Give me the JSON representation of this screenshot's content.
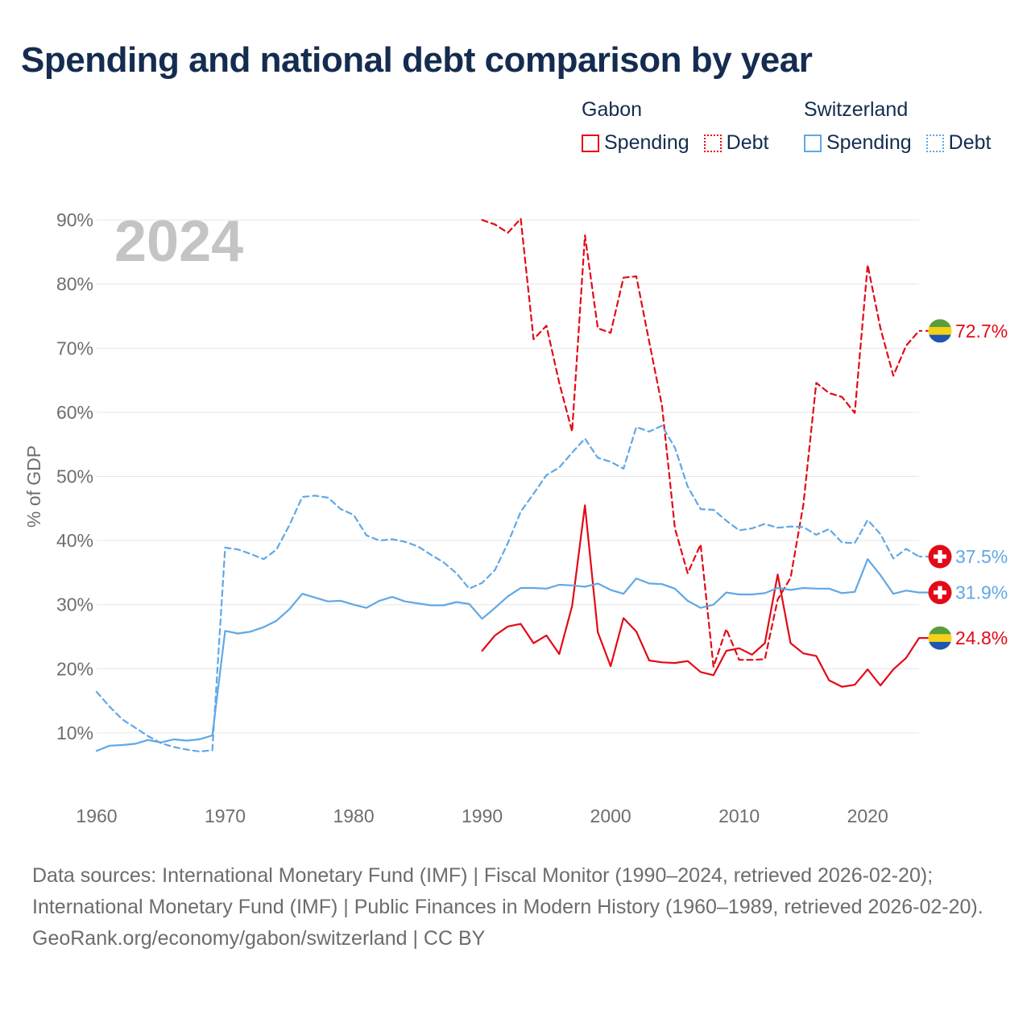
{
  "title": "Spending and national debt comparison by year",
  "legend": {
    "gabon": {
      "title": "Gabon",
      "spending": "Spending",
      "debt": "Debt"
    },
    "switzerland": {
      "title": "Switzerland",
      "spending": "Spending",
      "debt": "Debt"
    }
  },
  "colors": {
    "gabon": "#e30a17",
    "switzerland": "#60a8e6",
    "grid": "#e6e6e6",
    "axis_text": "#6e6e6e",
    "year_label": "#c4c4c4"
  },
  "chart_data": {
    "type": "line",
    "title": "Spending and national debt comparison by year",
    "year_label": "2024",
    "xlabel": "",
    "ylabel": "% of GDP",
    "xlim": [
      1960,
      2024
    ],
    "ylim": [
      0,
      90
    ],
    "x_ticks": [
      1960,
      1970,
      1980,
      1990,
      2000,
      2010,
      2020
    ],
    "y_ticks": [
      10,
      20,
      30,
      40,
      50,
      60,
      70,
      80,
      90
    ],
    "y_tick_labels": [
      "10%",
      "20%",
      "30%",
      "40%",
      "50%",
      "60%",
      "70%",
      "80%",
      "90%"
    ],
    "series": [
      {
        "name": "Gabon Spending",
        "country": "gabon",
        "style": "solid",
        "end_label": "24.8%",
        "x_start": 1990,
        "values": [
          22.8,
          25.2,
          26.6,
          27.0,
          24.0,
          25.2,
          22.3,
          29.8,
          45.5,
          25.7,
          20.4,
          27.9,
          25.8,
          21.3,
          21.0,
          20.9,
          21.2,
          19.5,
          19.0,
          22.8,
          23.2,
          22.2,
          24.0,
          34.7,
          24.0,
          22.4,
          22.0,
          18.2,
          17.2,
          17.5,
          19.9,
          17.4,
          19.9,
          21.7,
          24.8
        ]
      },
      {
        "name": "Gabon Debt",
        "country": "gabon",
        "style": "dashed",
        "end_label": "72.7%",
        "x_start": 1990,
        "values": [
          90.0,
          89.3,
          88.0,
          90.2,
          71.4,
          73.5,
          64.6,
          57.0,
          87.6,
          73.1,
          72.4,
          81.0,
          81.2,
          71.0,
          61.0,
          41.9,
          34.9,
          39.4,
          20.3,
          26.2,
          21.4,
          21.4,
          21.5,
          30.8,
          34.2,
          45.6,
          64.6,
          63.0,
          62.4,
          59.9,
          83.0,
          73.1,
          65.7,
          70.4,
          72.7
        ]
      },
      {
        "name": "Switzerland Spending",
        "country": "switzerland",
        "style": "solid",
        "end_label": "31.9%",
        "x_start": 1960,
        "values": [
          7.2,
          8.0,
          8.1,
          8.3,
          8.9,
          8.5,
          9.0,
          8.8,
          9.0,
          9.6,
          25.9,
          25.5,
          25.8,
          26.5,
          27.5,
          29.3,
          31.7,
          31.1,
          30.5,
          30.6,
          30.0,
          29.5,
          30.6,
          31.2,
          30.5,
          30.2,
          29.9,
          29.9,
          30.4,
          30.1,
          27.8,
          29.5,
          31.3,
          32.6,
          32.6,
          32.5,
          33.1,
          33.0,
          32.8,
          33.3,
          32.3,
          31.7,
          34.1,
          33.3,
          33.2,
          32.5,
          30.6,
          29.5,
          30.0,
          31.9,
          31.6,
          31.6,
          31.8,
          32.6,
          32.3,
          32.6,
          32.5,
          32.5,
          31.8,
          32.0,
          37.1,
          34.6,
          31.7,
          32.2,
          31.9
        ]
      },
      {
        "name": "Switzerland Debt",
        "country": "switzerland",
        "style": "dashed",
        "end_label": "37.5%",
        "x_start": 1960,
        "values": [
          16.4,
          14.1,
          12.1,
          10.8,
          9.5,
          8.4,
          7.8,
          7.4,
          7.1,
          7.3,
          38.9,
          38.6,
          37.9,
          37.1,
          38.6,
          42.4,
          46.8,
          47.0,
          46.7,
          44.9,
          44.0,
          40.8,
          40.0,
          40.2,
          39.8,
          39.1,
          37.8,
          36.6,
          34.9,
          32.5,
          33.4,
          35.4,
          39.6,
          44.5,
          47.3,
          50.2,
          51.4,
          53.7,
          55.9,
          52.9,
          52.3,
          51.2,
          57.7,
          57.0,
          57.9,
          54.5,
          48.4,
          44.9,
          44.8,
          43.1,
          41.6,
          41.9,
          42.6,
          42.0,
          42.2,
          42.1,
          40.9,
          41.8,
          39.7,
          39.6,
          43.2,
          41.0,
          37.2,
          38.7,
          37.5
        ]
      }
    ],
    "footer": {
      "source": "Data sources: International Monetary Fund (IMF) | Fiscal Monitor (1990–2024, retrieved 2026-02-20); International Monetary Fund (IMF) | Public Finances in Modern History (1960–1989, retrieved 2026-02-20).",
      "credit": "GeoRank.org/economy/gabon/switzerland | CC BY"
    }
  }
}
